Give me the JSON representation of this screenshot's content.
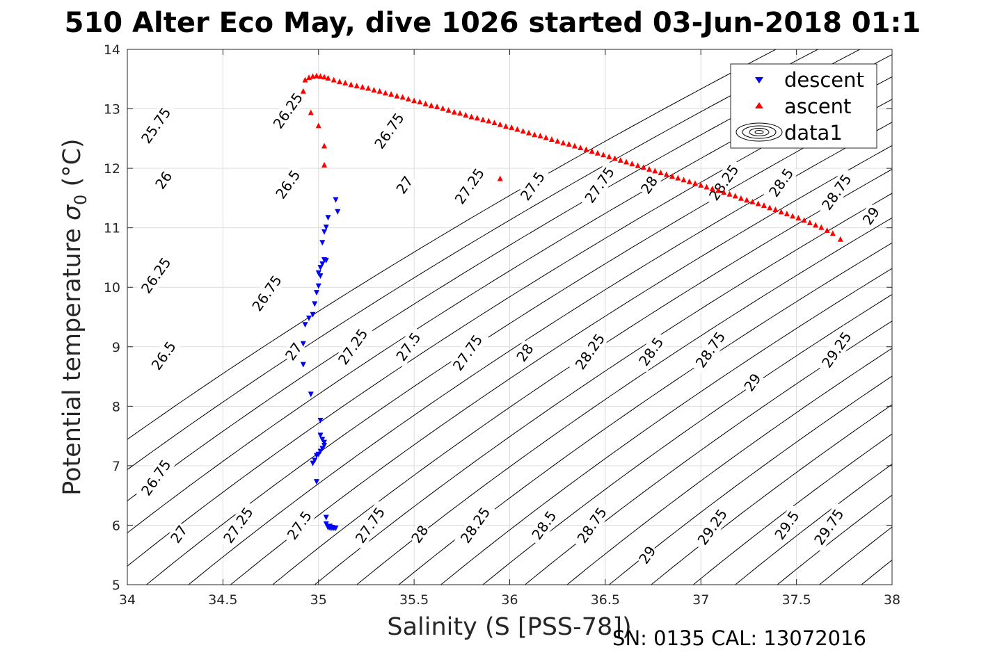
{
  "chart_data": {
    "type": "scatter",
    "title": "510 Alter Eco May, dive 1026 started 03-Jun-2018 01:1",
    "xlabel": "Salinity (S [PSS-78])",
    "ylabel_main": "Potential temperature ",
    "ylabel_sigma": "σ",
    "ylabel_sub": "0",
    "ylabel_unit": " (°C)",
    "footer": "SN: 0135  CAL: 13072016",
    "xlim": [
      34,
      38
    ],
    "ylim": [
      5,
      14
    ],
    "xticks": [
      34,
      34.5,
      35,
      35.5,
      36,
      36.5,
      37,
      37.5,
      38
    ],
    "yticks": [
      5,
      6,
      7,
      8,
      9,
      10,
      11,
      12,
      13,
      14
    ],
    "grid": true,
    "legend_position": "top-right",
    "legend": [
      "descent",
      "ascent",
      "data1"
    ],
    "colors": {
      "descent": "#0000ff",
      "ascent": "#ff0000",
      "contour": "#000000",
      "grid": "#dcdcdc"
    },
    "series": [
      {
        "name": "descent",
        "marker": "triangle-down",
        "x": [
          35.09,
          35.1,
          35.05,
          35.04,
          35.03,
          35.02,
          35.03,
          35.04,
          35.02,
          35.01,
          35.0,
          35.01,
          35.0,
          34.99,
          34.98,
          34.97,
          34.95,
          34.93,
          34.92,
          34.92,
          34.96,
          35.01,
          35.01,
          35.02,
          35.03,
          35.03,
          35.02,
          35.01,
          35.0,
          34.99,
          34.98,
          34.97,
          34.99,
          35.04,
          35.04,
          35.05,
          35.06,
          35.07,
          35.09,
          35.08,
          35.05,
          35.06,
          35.07,
          35.08
        ],
        "y": [
          11.48,
          11.28,
          11.18,
          11.02,
          10.94,
          10.76,
          10.47,
          10.46,
          10.4,
          10.34,
          10.25,
          10.2,
          10.03,
          9.92,
          9.73,
          9.55,
          9.49,
          9.38,
          9.06,
          8.71,
          8.21,
          7.77,
          7.52,
          7.45,
          7.4,
          7.35,
          7.3,
          7.25,
          7.2,
          7.18,
          7.1,
          7.05,
          6.74,
          6.14,
          6.03,
          5.97,
          5.96,
          5.96,
          5.96,
          5.96,
          5.98,
          5.99,
          5.97,
          5.96
        ]
      },
      {
        "name": "ascent",
        "marker": "triangle-up",
        "x": [
          34.93,
          34.95,
          34.97,
          34.99,
          35.01,
          35.03,
          35.05,
          35.08,
          35.11,
          35.14,
          35.17,
          35.2,
          35.23,
          35.26,
          35.29,
          35.32,
          35.35,
          35.38,
          35.41,
          35.44,
          35.47,
          35.5,
          35.53,
          35.56,
          35.59,
          35.62,
          35.65,
          35.68,
          35.71,
          35.74,
          35.77,
          35.8,
          35.83,
          35.86,
          35.89,
          35.92,
          35.95,
          35.98,
          36.01,
          36.04,
          36.07,
          36.1,
          36.13,
          36.16,
          36.19,
          36.22,
          36.25,
          36.28,
          36.31,
          36.34,
          36.37,
          36.4,
          36.43,
          36.46,
          36.49,
          36.52,
          36.55,
          36.58,
          36.61,
          36.64,
          36.67,
          36.7,
          36.73,
          36.76,
          36.79,
          36.82,
          36.85,
          36.88,
          36.91,
          36.94,
          36.97,
          37.0,
          37.03,
          37.06,
          37.09,
          37.12,
          37.15,
          37.18,
          37.21,
          37.24,
          37.27,
          37.3,
          37.33,
          37.36,
          37.39,
          37.42,
          37.45,
          37.48,
          37.51,
          37.54,
          37.57,
          37.6,
          37.63,
          37.66,
          37.69,
          37.73,
          34.92,
          34.96,
          35.0,
          35.03,
          35.03,
          35.95
        ],
        "y": [
          13.48,
          13.52,
          13.54,
          13.55,
          13.54,
          13.53,
          13.51,
          13.48,
          13.45,
          13.43,
          13.4,
          13.38,
          13.36,
          13.34,
          13.31,
          13.29,
          13.26,
          13.24,
          13.21,
          13.19,
          13.16,
          13.13,
          13.11,
          13.08,
          13.05,
          13.03,
          13.0,
          12.97,
          12.94,
          12.92,
          12.89,
          12.86,
          12.84,
          12.81,
          12.79,
          12.76,
          12.73,
          12.7,
          12.68,
          12.65,
          12.62,
          12.59,
          12.56,
          12.54,
          12.51,
          12.48,
          12.45,
          12.42,
          12.4,
          12.37,
          12.34,
          12.31,
          12.28,
          12.25,
          12.22,
          12.19,
          12.16,
          12.13,
          12.1,
          12.07,
          12.04,
          12.01,
          11.98,
          11.95,
          11.92,
          11.89,
          11.86,
          11.83,
          11.8,
          11.77,
          11.74,
          11.71,
          11.68,
          11.65,
          11.62,
          11.59,
          11.56,
          11.53,
          11.49,
          11.46,
          11.43,
          11.4,
          11.37,
          11.33,
          11.3,
          11.26,
          11.23,
          11.19,
          11.16,
          11.12,
          11.08,
          11.04,
          11.0,
          10.95,
          10.9,
          10.8,
          13.29,
          12.93,
          12.71,
          12.37,
          12.05,
          11.82
        ]
      }
    ],
    "contours": {
      "name": "data1",
      "levels": [
        "25.75",
        "26",
        "26.25",
        "26.5",
        "26.75",
        "27",
        "27.25",
        "27.5",
        "27.75",
        "28",
        "28.25",
        "28.5",
        "28.75",
        "29",
        "29.25",
        "29.5",
        "29.75"
      ],
      "labels": [
        {
          "text": "25.75",
          "s": 34.15,
          "t": 12.72
        },
        {
          "text": "26",
          "s": 34.19,
          "t": 11.8
        },
        {
          "text": "26.25",
          "s": 34.15,
          "t": 10.2
        },
        {
          "text": "26.5",
          "s": 34.19,
          "t": 8.85
        },
        {
          "text": "26.75",
          "s": 34.15,
          "t": 6.8
        },
        {
          "text": "27",
          "s": 34.27,
          "t": 5.85
        },
        {
          "text": "26.25",
          "s": 34.84,
          "t": 12.97
        },
        {
          "text": "26.5",
          "s": 34.84,
          "t": 11.73
        },
        {
          "text": "26.75",
          "s": 34.73,
          "t": 9.9
        },
        {
          "text": "27",
          "s": 34.87,
          "t": 8.92
        },
        {
          "text": "27.25",
          "s": 34.58,
          "t": 6.0
        },
        {
          "text": "27.5",
          "s": 34.9,
          "t": 6.0
        },
        {
          "text": "26.75",
          "s": 35.37,
          "t": 12.63
        },
        {
          "text": "27",
          "s": 35.45,
          "t": 11.72
        },
        {
          "text": "27.25",
          "s": 35.18,
          "t": 9.0
        },
        {
          "text": "27.5",
          "s": 35.47,
          "t": 9.0
        },
        {
          "text": "27.75",
          "s": 35.27,
          "t": 6.0
        },
        {
          "text": "28",
          "s": 35.53,
          "t": 5.85
        },
        {
          "text": "27.25",
          "s": 35.79,
          "t": 11.7
        },
        {
          "text": "27.5",
          "s": 36.12,
          "t": 11.7
        },
        {
          "text": "27.75",
          "s": 35.78,
          "t": 8.9
        },
        {
          "text": "28",
          "s": 36.08,
          "t": 8.9
        },
        {
          "text": "28.25",
          "s": 35.82,
          "t": 6.0
        },
        {
          "text": "28.5",
          "s": 36.18,
          "t": 6.0
        },
        {
          "text": "27.75",
          "s": 36.47,
          "t": 11.72
        },
        {
          "text": "28",
          "s": 36.73,
          "t": 11.72
        },
        {
          "text": "28.25",
          "s": 36.42,
          "t": 8.92
        },
        {
          "text": "28.5",
          "s": 36.74,
          "t": 8.92
        },
        {
          "text": "28.75",
          "s": 36.43,
          "t": 6.0
        },
        {
          "text": "29",
          "s": 36.72,
          "t": 5.5
        },
        {
          "text": "28.25",
          "s": 37.12,
          "t": 11.76
        },
        {
          "text": "28.5",
          "s": 37.42,
          "t": 11.76
        },
        {
          "text": "28.75",
          "s": 37.05,
          "t": 8.95
        },
        {
          "text": "29",
          "s": 37.27,
          "t": 8.4
        },
        {
          "text": "29.25",
          "s": 37.06,
          "t": 5.97
        },
        {
          "text": "29.5",
          "s": 37.45,
          "t": 6.0
        },
        {
          "text": "28.75",
          "s": 37.71,
          "t": 11.6
        },
        {
          "text": "29",
          "s": 37.89,
          "t": 11.2
        },
        {
          "text": "29.25",
          "s": 37.71,
          "t": 8.95
        },
        {
          "text": "29.75",
          "s": 37.67,
          "t": 5.97
        }
      ]
    }
  }
}
